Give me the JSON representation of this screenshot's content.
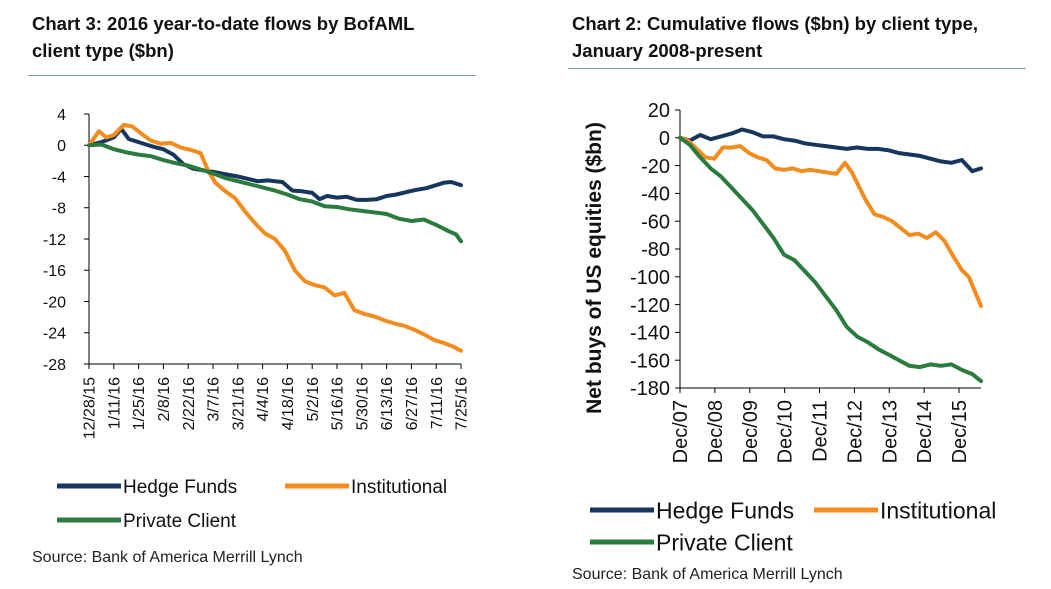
{
  "source_left": "Source: Bank of America Merrill Lynch",
  "source_right": "Source: Bank of America Merrill Lynch",
  "chart_data": [
    {
      "type": "line",
      "title": "Chart 3: 2016 year-to-date flows by BofAML client type ($bn)",
      "title_lines": [
        "Chart 3: 2016 year-to-date flows by BofAML",
        "client type ($bn)"
      ],
      "xlabel": "",
      "ylabel": "",
      "ylim": [
        -28,
        4
      ],
      "yticks": [
        4,
        0,
        -4,
        -8,
        -12,
        -16,
        -20,
        -24,
        -28
      ],
      "ytick_labels": [
        "4",
        "0",
        "-4",
        "-8",
        "-12",
        "-16",
        "-20",
        "-24",
        "-28"
      ],
      "xlim": [
        0,
        30
      ],
      "x_unit": "weeks since 12/28/15",
      "xtick_positions": [
        0,
        2,
        4,
        6,
        8,
        10,
        12,
        14,
        16,
        18,
        20,
        22,
        24,
        26,
        28,
        30
      ],
      "xtick_labels": [
        "12/28/15",
        "1/11/16",
        "1/25/16",
        "2/8/16",
        "2/22/16",
        "3/7/16",
        "3/21/16",
        "4/4/16",
        "4/18/16",
        "5/2/16",
        "5/16/16",
        "5/30/16",
        "6/13/16",
        "6/27/16",
        "7/11/16",
        "7/25/16"
      ],
      "legend": [
        "Hedge Funds",
        "Institutional",
        "Private Client"
      ],
      "legend_position": "bottom",
      "series": [
        {
          "name": "Hedge Funds",
          "color": "#17365d",
          "x": [
            0,
            1,
            2,
            2.6,
            3.2,
            4,
            4.6,
            5.2,
            6,
            6.8,
            7.6,
            8.4,
            9.2,
            10,
            11,
            12,
            12.8,
            13.6,
            14.4,
            15,
            15.6,
            16.4,
            17.2,
            18,
            18.6,
            19.2,
            20,
            20.8,
            21.6,
            22.4,
            23.2,
            24,
            24.8,
            25.6,
            26.4,
            27.2,
            28,
            28.6,
            29.2,
            30
          ],
          "y": [
            0,
            0.4,
            1.0,
            2.1,
            0.8,
            0.4,
            0.1,
            -0.2,
            -0.5,
            -1.2,
            -2.4,
            -3.0,
            -3.2,
            -3.4,
            -3.7,
            -4.0,
            -4.3,
            -4.6,
            -4.5,
            -4.6,
            -4.7,
            -5.8,
            -5.9,
            -6.1,
            -6.9,
            -6.5,
            -6.7,
            -6.6,
            -7.0,
            -7.0,
            -6.9,
            -6.5,
            -6.3,
            -6.0,
            -5.7,
            -5.5,
            -5.1,
            -4.8,
            -4.7,
            -5.1
          ]
        },
        {
          "name": "Institutional",
          "color": "#f28c1e",
          "x": [
            0,
            0.8,
            1.4,
            2,
            2.8,
            3.5,
            4.2,
            5,
            5.8,
            6.6,
            7.4,
            8.2,
            9,
            9.6,
            10.2,
            11,
            11.8,
            12.6,
            13.4,
            14.2,
            15,
            15.8,
            16.6,
            17.4,
            18.2,
            19,
            19.8,
            20.6,
            21.4,
            22.2,
            23,
            23.8,
            24.6,
            25.4,
            26.2,
            27,
            27.8,
            28.6,
            29.4,
            30
          ],
          "y": [
            0,
            1.8,
            1.0,
            1.3,
            2.6,
            2.4,
            1.5,
            0.6,
            0.2,
            0.3,
            -0.3,
            -0.6,
            -1.0,
            -3.2,
            -4.8,
            -5.9,
            -6.8,
            -8.5,
            -10.0,
            -11.3,
            -12.0,
            -13.5,
            -16.0,
            -17.4,
            -17.9,
            -18.2,
            -19.2,
            -18.9,
            -21.1,
            -21.6,
            -21.9,
            -22.4,
            -22.8,
            -23.1,
            -23.6,
            -24.2,
            -24.9,
            -25.3,
            -25.8,
            -26.3
          ]
        },
        {
          "name": "Private Client",
          "color": "#2b7a3e",
          "x": [
            0,
            1,
            2,
            3,
            4,
            5,
            6,
            7,
            8,
            9,
            10,
            11,
            12,
            13,
            14,
            15,
            16,
            17,
            18,
            19,
            20,
            21,
            22,
            23,
            24,
            25,
            26,
            27,
            28,
            29,
            29.6,
            30
          ],
          "y": [
            0,
            0.1,
            -0.5,
            -0.9,
            -1.2,
            -1.4,
            -1.9,
            -2.3,
            -2.6,
            -3.1,
            -3.6,
            -4.2,
            -4.6,
            -5.0,
            -5.4,
            -5.8,
            -6.3,
            -6.9,
            -7.2,
            -7.8,
            -7.9,
            -8.2,
            -8.4,
            -8.6,
            -8.8,
            -9.4,
            -9.7,
            -9.5,
            -10.2,
            -11.0,
            -11.4,
            -12.3
          ]
        }
      ]
    },
    {
      "type": "line",
      "title": "Chart 2: Cumulative flows ($bn) by client type, January 2008-present",
      "title_lines": [
        "Chart 2: Cumulative flows ($bn) by client type,",
        "January 2008-present"
      ],
      "xlabel": "",
      "ylabel": "Net buys of US equities ($bn)",
      "ylim": [
        -180,
        20
      ],
      "yticks": [
        20,
        0,
        -20,
        -40,
        -60,
        -80,
        -100,
        -120,
        -140,
        -160,
        -180
      ],
      "ytick_labels": [
        "20",
        "0",
        "-20",
        "-40",
        "-60",
        "-80",
        "-100",
        "-120",
        "-140",
        "-160",
        "-180"
      ],
      "xlim": [
        2007.92,
        2016.55
      ],
      "x_unit": "year",
      "xtick_positions": [
        2007.92,
        2008.92,
        2009.92,
        2010.92,
        2011.92,
        2012.92,
        2013.92,
        2014.92,
        2015.92
      ],
      "xtick_labels": [
        "Dec/07",
        "Dec/08",
        "Dec/09",
        "Dec/10",
        "Dec/11",
        "Dec/12",
        "Dec/13",
        "Dec/14",
        "Dec/15"
      ],
      "legend": [
        "Hedge Funds",
        "Institutional",
        "Private Client"
      ],
      "legend_position": "bottom",
      "series": [
        {
          "name": "Hedge Funds",
          "color": "#17365d",
          "x": [
            2007.92,
            2008.2,
            2008.5,
            2008.8,
            2009.1,
            2009.4,
            2009.7,
            2010.0,
            2010.3,
            2010.6,
            2010.9,
            2011.2,
            2011.5,
            2011.8,
            2012.1,
            2012.4,
            2012.7,
            2013.0,
            2013.3,
            2013.6,
            2013.9,
            2014.2,
            2014.5,
            2014.8,
            2015.1,
            2015.4,
            2015.7,
            2016.0,
            2016.3,
            2016.55
          ],
          "y": [
            0,
            -2,
            2,
            -1,
            1,
            3,
            6,
            4,
            1,
            1,
            -1,
            -2,
            -4,
            -5,
            -6,
            -7,
            -8,
            -7,
            -8,
            -8,
            -9,
            -11,
            -12,
            -13,
            -15,
            -17,
            -18,
            -16,
            -24,
            -22
          ]
        },
        {
          "name": "Institutional",
          "color": "#f28c1e",
          "x": [
            2007.92,
            2008.15,
            2008.4,
            2008.65,
            2008.9,
            2009.15,
            2009.4,
            2009.65,
            2009.9,
            2010.15,
            2010.4,
            2010.65,
            2010.9,
            2011.15,
            2011.4,
            2011.65,
            2011.9,
            2012.15,
            2012.4,
            2012.65,
            2012.85,
            2013.05,
            2013.25,
            2013.5,
            2013.75,
            2014.0,
            2014.25,
            2014.5,
            2014.75,
            2015.0,
            2015.25,
            2015.5,
            2015.75,
            2016.0,
            2016.2,
            2016.4,
            2016.55
          ],
          "y": [
            0,
            -2,
            -8,
            -14,
            -15,
            -7,
            -7,
            -6,
            -11,
            -14,
            -16,
            -22,
            -23,
            -22,
            -24,
            -23,
            -24,
            -25,
            -26,
            -18,
            -25,
            -35,
            -45,
            -55,
            -57,
            -60,
            -65,
            -70,
            -69,
            -72,
            -68,
            -74,
            -85,
            -95,
            -100,
            -112,
            -121
          ]
        },
        {
          "name": "Private Client",
          "color": "#2b7a3e",
          "x": [
            2007.92,
            2008.2,
            2008.5,
            2008.8,
            2009.1,
            2009.4,
            2009.7,
            2010.0,
            2010.3,
            2010.6,
            2010.9,
            2011.2,
            2011.5,
            2011.8,
            2012.1,
            2012.4,
            2012.7,
            2013.0,
            2013.3,
            2013.6,
            2013.9,
            2014.2,
            2014.5,
            2014.8,
            2015.1,
            2015.4,
            2015.7,
            2016.0,
            2016.3,
            2016.55
          ],
          "y": [
            0,
            -5,
            -14,
            -22,
            -28,
            -36,
            -44,
            -52,
            -62,
            -72,
            -84,
            -88,
            -96,
            -104,
            -114,
            -124,
            -136,
            -143,
            -147,
            -152,
            -156,
            -160,
            -164,
            -165,
            -163,
            -164,
            -163,
            -167,
            -170,
            -175
          ]
        }
      ]
    }
  ]
}
